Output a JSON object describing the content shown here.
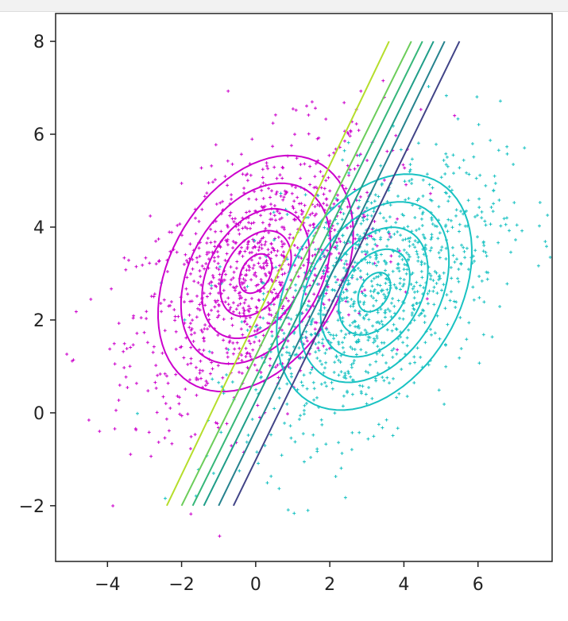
{
  "chart_data": {
    "type": "scatter",
    "title": "",
    "xlabel": "",
    "ylabel": "",
    "xlim": [
      -5.4,
      8.0
    ],
    "ylim": [
      -3.2,
      8.6
    ],
    "xticks": [
      -4,
      -2,
      0,
      2,
      4,
      6
    ],
    "yticks": [
      -2,
      0,
      2,
      4,
      6,
      8
    ],
    "xtick_labels": [
      "−4",
      "−2",
      "0",
      "2",
      "4",
      "6"
    ],
    "ytick_labels": [
      "−2",
      "0",
      "2",
      "4",
      "6",
      "8"
    ],
    "grid": false,
    "legend": "none",
    "series": [
      {
        "kind": "scatter",
        "color": "#cc00cc",
        "marker": "plus",
        "mean": [
          0,
          3
        ],
        "std": [
          1.7,
          1.5
        ],
        "corr": 0.5,
        "n": 1000
      },
      {
        "kind": "scatter",
        "color": "#19c2c2",
        "marker": "plus",
        "mean": [
          3.2,
          2.6
        ],
        "std": [
          1.7,
          1.5
        ],
        "corr": 0.5,
        "n": 1000
      }
    ],
    "contours": [
      {
        "color": "#cc00cc",
        "center": [
          0,
          3
        ],
        "angle_deg": 42,
        "radii": [
          [
            0.5,
            0.35
          ],
          [
            1.1,
            0.75
          ],
          [
            1.65,
            1.15
          ],
          [
            2.3,
            1.6
          ],
          [
            3.0,
            2.1
          ]
        ]
      },
      {
        "color": "#19c2c2",
        "center": [
          3.2,
          2.6
        ],
        "angle_deg": 42,
        "radii": [
          [
            0.5,
            0.35
          ],
          [
            1.1,
            0.75
          ],
          [
            1.65,
            1.15
          ],
          [
            2.3,
            1.6
          ],
          [
            3.0,
            2.1
          ]
        ]
      }
    ],
    "boundaries": [
      {
        "color": "#b5de2b",
        "x": [
          -2.4,
          3.6
        ],
        "y": [
          -2,
          8
        ]
      },
      {
        "color": "#6ccd5a",
        "x": [
          -2.0,
          4.2
        ],
        "y": [
          -2,
          8
        ]
      },
      {
        "color": "#35b779",
        "x": [
          -1.7,
          4.5
        ],
        "y": [
          -2,
          8
        ]
      },
      {
        "color": "#1f9e89",
        "x": [
          -1.4,
          4.8
        ],
        "y": [
          -2,
          8
        ]
      },
      {
        "color": "#26828e",
        "x": [
          -1.0,
          5.1
        ],
        "y": [
          -2,
          8
        ]
      },
      {
        "color": "#414487",
        "x": [
          -0.6,
          5.5
        ],
        "y": [
          -2,
          8
        ]
      }
    ],
    "axes_color": "#222222"
  }
}
